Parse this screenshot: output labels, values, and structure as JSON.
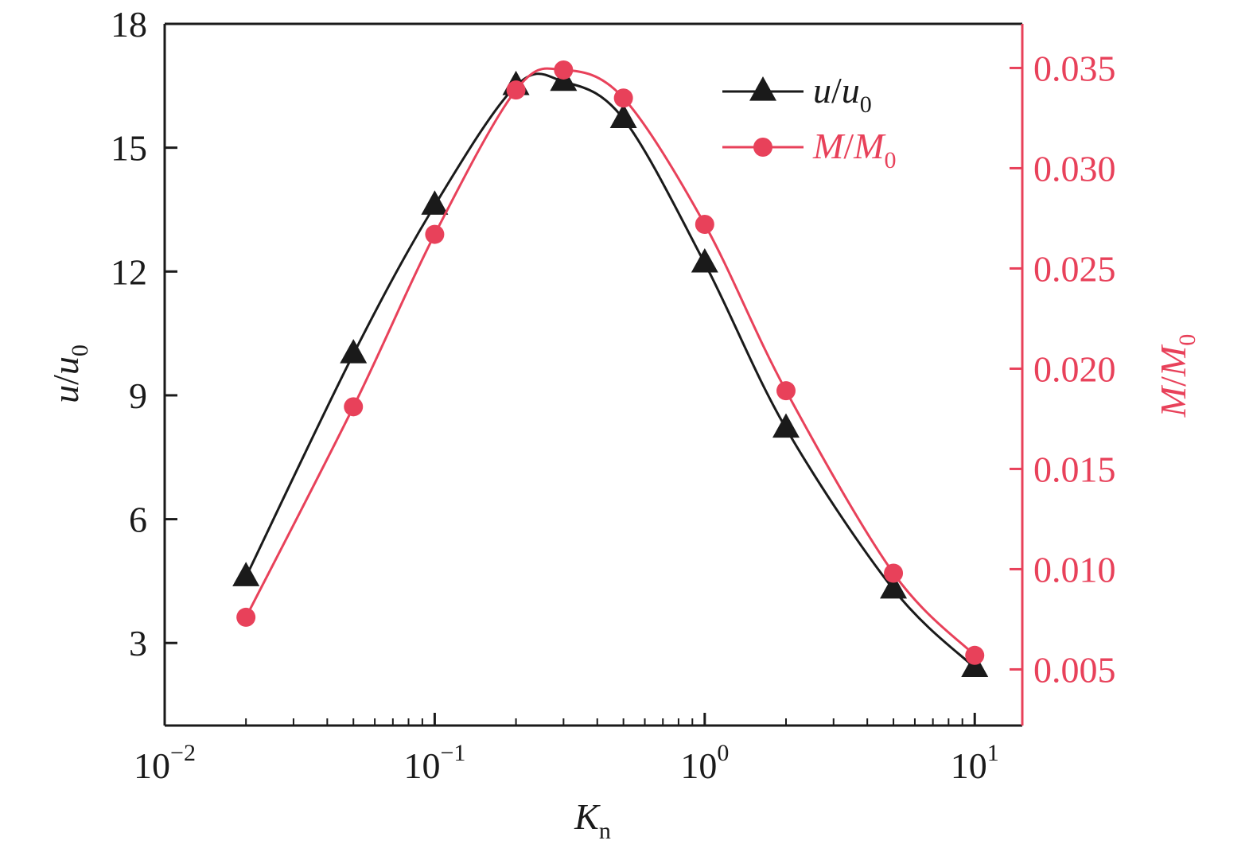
{
  "chart_data": {
    "type": "line",
    "x_scale": "log",
    "xlim": [
      0.01,
      15
    ],
    "x_ticks": [
      {
        "value": 0.01,
        "base": "10",
        "exp": "−2"
      },
      {
        "value": 0.1,
        "base": "10",
        "exp": "−1"
      },
      {
        "value": 1,
        "base": "10",
        "exp": "0"
      },
      {
        "value": 10,
        "base": "10",
        "exp": "1"
      }
    ],
    "xlabel": {
      "main": "K",
      "sub": "n"
    },
    "y_left": {
      "label": {
        "main": "u",
        "slash": "/",
        "main2": "u",
        "sub": "0"
      },
      "lim": [
        1,
        18
      ],
      "ticks": [
        3,
        6,
        9,
        12,
        15,
        18
      ],
      "color": "#1a1a1a"
    },
    "y_right": {
      "label": {
        "main": "M",
        "slash": "/",
        "main2": "M",
        "sub": "0"
      },
      "lim": [
        0.0022,
        0.0372
      ],
      "ticks": [
        "0.005",
        "0.010",
        "0.015",
        "0.020",
        "0.025",
        "0.030",
        "0.035"
      ],
      "color": "#e8415a"
    },
    "legend": {
      "position": "top-right",
      "items": [
        {
          "series": 0,
          "main": "u",
          "slash": "/",
          "main2": "u",
          "sub": "0"
        },
        {
          "series": 1,
          "main": "M",
          "slash": "/",
          "main2": "M",
          "sub": "0"
        }
      ]
    },
    "series": [
      {
        "axis": "left",
        "color": "#1a1a1a",
        "marker": "triangle",
        "x": [
          0.02,
          0.05,
          0.1,
          0.2,
          0.3,
          0.5,
          1,
          2,
          5,
          10
        ],
        "y": [
          4.6,
          10.0,
          13.6,
          16.5,
          16.6,
          15.7,
          12.2,
          8.2,
          4.3,
          2.4
        ]
      },
      {
        "axis": "right",
        "color": "#e8415a",
        "marker": "circle",
        "x": [
          0.02,
          0.05,
          0.1,
          0.2,
          0.3,
          0.5,
          1,
          2,
          5,
          10
        ],
        "y": [
          0.0076,
          0.0181,
          0.0267,
          0.0339,
          0.0349,
          0.0335,
          0.0272,
          0.0189,
          0.0098,
          0.0057
        ]
      }
    ]
  }
}
